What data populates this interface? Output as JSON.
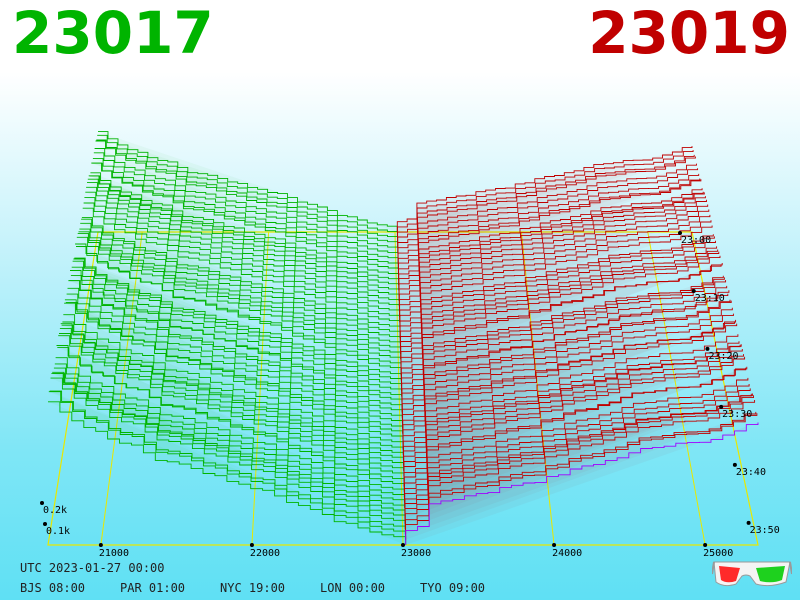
{
  "header": {
    "bid_price": "23017",
    "ask_price": "23019"
  },
  "footer": {
    "utc": "UTC 2023-01-27 00:00",
    "timezones": [
      "BJS 08:00",
      "PAR 01:00",
      "NYC 19:00",
      "LON 00:00",
      "TYO 09:00"
    ]
  },
  "colors": {
    "bid": "#00b400",
    "ask": "#c00000",
    "grid": "#e8e800",
    "latest_ask": "#a000ff",
    "background_top": "#ffffff",
    "background_bottom": "#5fe0f4"
  },
  "icons": {
    "glasses": "anaglyph-3d-glasses-icon"
  },
  "chart_data": {
    "type": "area",
    "x_ticks": [
      "21000",
      "22000",
      "23000",
      "24000",
      "25000"
    ],
    "volume_ticks": [
      "0.1k",
      "0.2k"
    ],
    "time_ticks": [
      "23:00",
      "23:10",
      "23:20",
      "23:30",
      "23:40",
      "23:50"
    ],
    "x_range": [
      20650,
      25350
    ],
    "mid_price": 23018,
    "series": [
      {
        "name": "23017",
        "side": "bid"
      },
      {
        "name": "23019",
        "side": "ask"
      }
    ]
  }
}
